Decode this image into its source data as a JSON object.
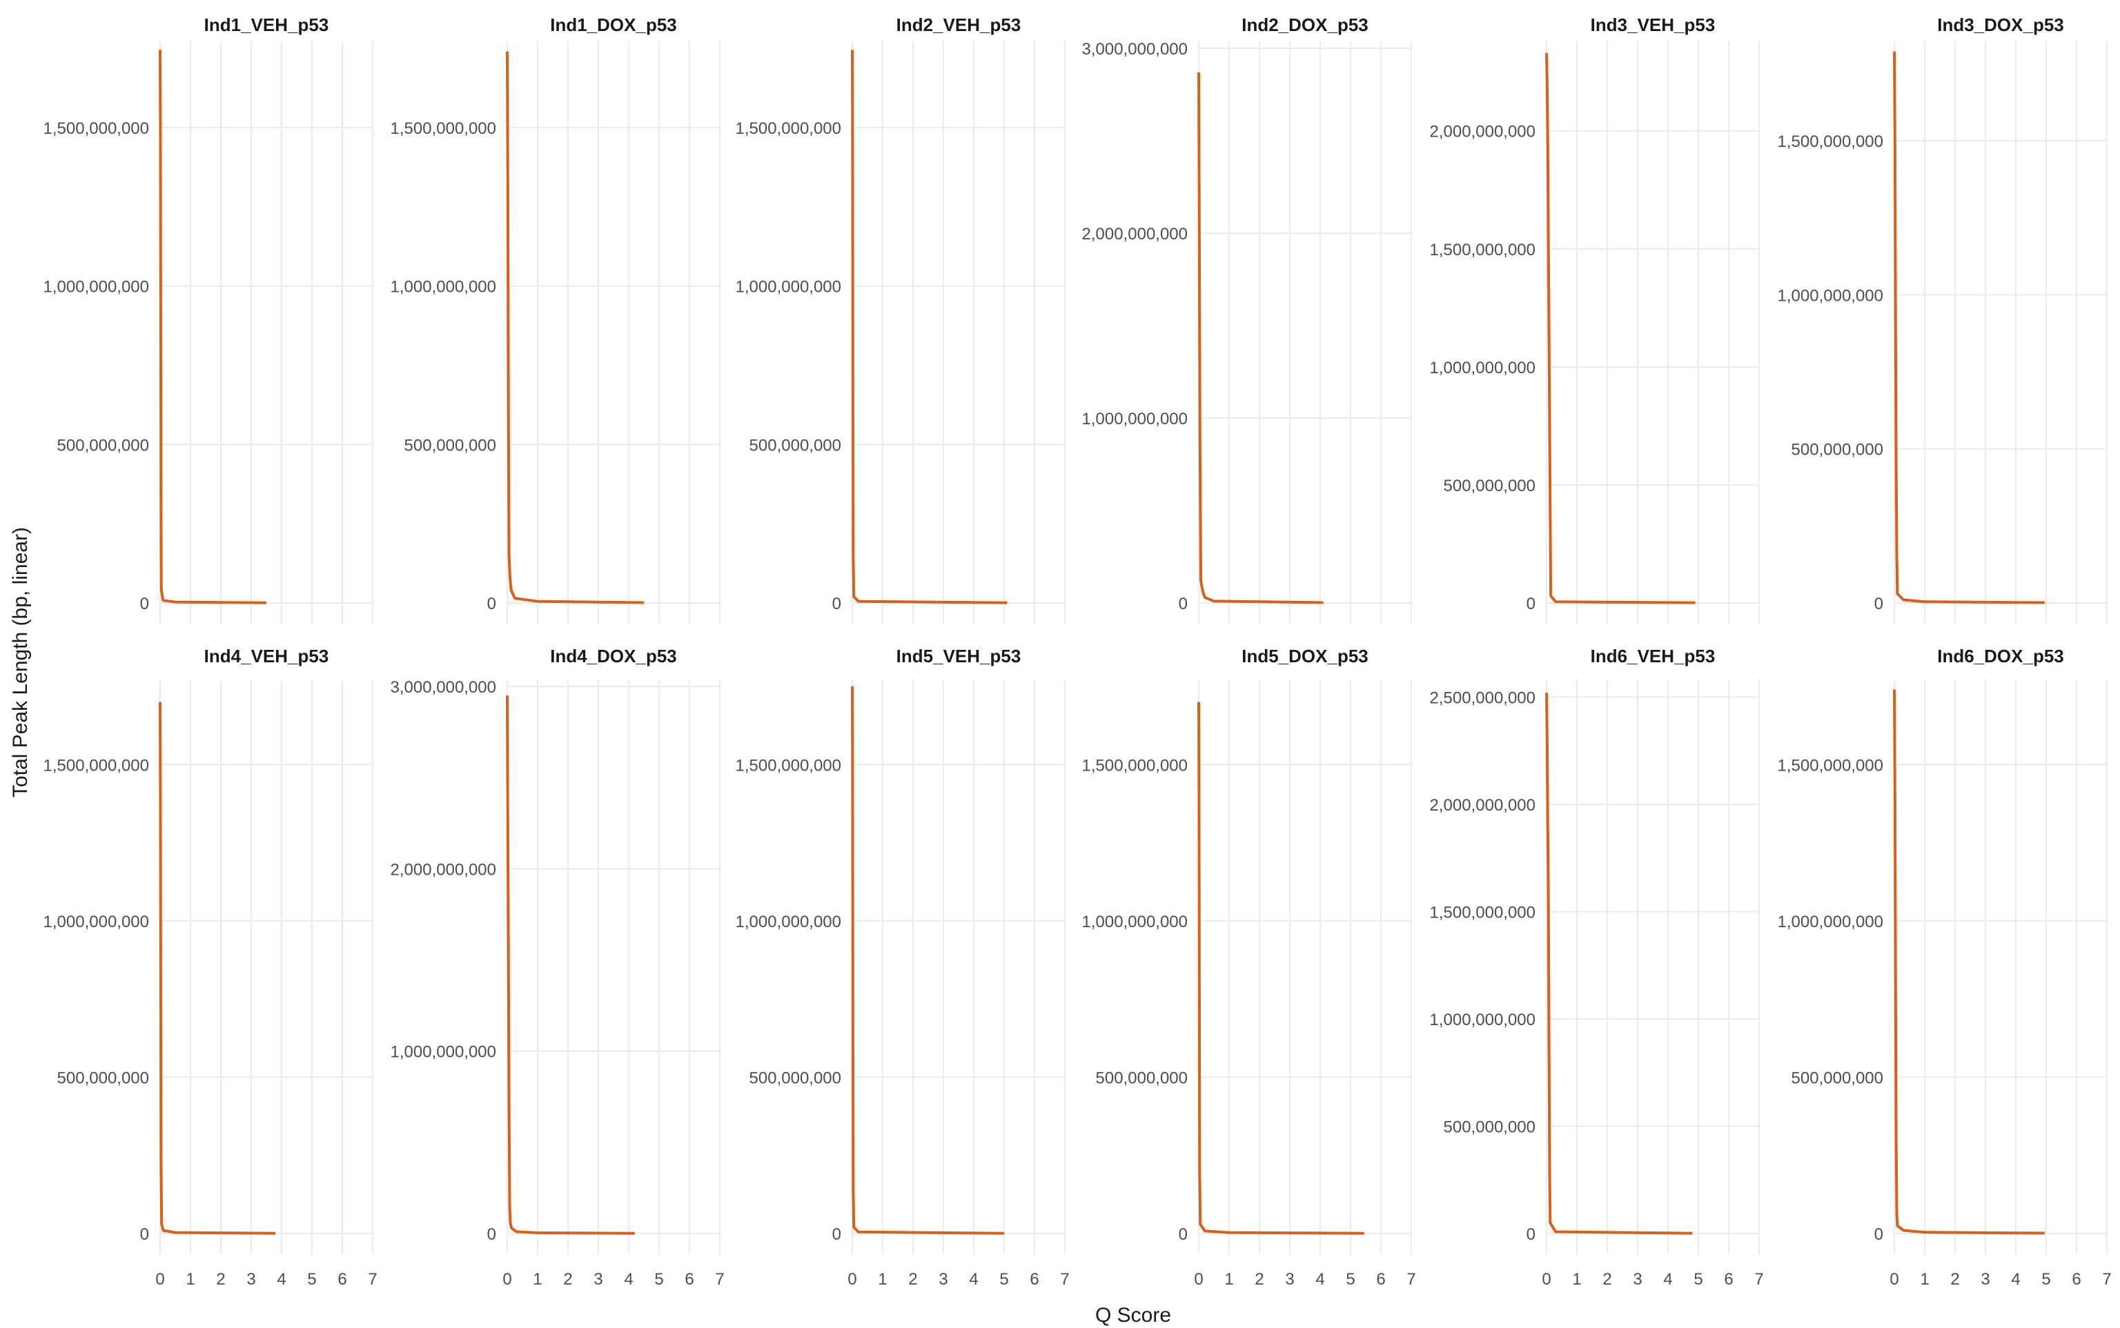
{
  "chart_data": {
    "type": "line",
    "facet_layout": {
      "rows": 2,
      "cols": 6
    },
    "xlabel": "Q Score",
    "ylabel": "Total Peak Length (bp, linear)",
    "line_color": "#D9601A",
    "grid_color": "#EBEBEB",
    "x_ticks": [
      0,
      1,
      2,
      3,
      4,
      5,
      6,
      7
    ],
    "xlim": [
      0,
      7
    ],
    "grid": true,
    "panels": [
      {
        "title": "Ind1_VEH_p53",
        "ylim": [
          0,
          1750000000
        ],
        "yticks": [
          0,
          500000000,
          1000000000,
          1500000000
        ],
        "ytick_labels": [
          "0",
          "500,000,000",
          "1,000,000,000",
          "1,500,000,000"
        ],
        "points": [
          [
            0,
            1745000000
          ],
          [
            0.01,
            1500000000
          ],
          [
            0.02,
            900000000
          ],
          [
            0.03,
            300000000
          ],
          [
            0.04,
            40000000
          ],
          [
            0.1,
            8000000
          ],
          [
            0.5,
            3000000
          ],
          [
            3.5,
            500000
          ]
        ]
      },
      {
        "title": "Ind1_DOX_p53",
        "ylim": [
          0,
          1750000000
        ],
        "yticks": [
          0,
          500000000,
          1000000000,
          1500000000
        ],
        "ytick_labels": [
          "0",
          "500,000,000",
          "1,000,000,000",
          "1,500,000,000"
        ],
        "points": [
          [
            0,
            1740000000
          ],
          [
            0.02,
            1300000000
          ],
          [
            0.04,
            600000000
          ],
          [
            0.06,
            150000000
          ],
          [
            0.09,
            80000000
          ],
          [
            0.13,
            40000000
          ],
          [
            0.25,
            15000000
          ],
          [
            1,
            5000000
          ],
          [
            4.5,
            1000000
          ]
        ]
      },
      {
        "title": "Ind2_VEH_p53",
        "ylim": [
          0,
          1750000000
        ],
        "yticks": [
          0,
          500000000,
          1000000000,
          1500000000
        ],
        "ytick_labels": [
          "0",
          "500,000,000",
          "1,000,000,000",
          "1,500,000,000"
        ],
        "points": [
          [
            0,
            1745000000
          ],
          [
            0.01,
            1400000000
          ],
          [
            0.02,
            700000000
          ],
          [
            0.03,
            150000000
          ],
          [
            0.05,
            20000000
          ],
          [
            0.2,
            5000000
          ],
          [
            5.1,
            500000
          ]
        ]
      },
      {
        "title": "Ind2_DOX_p53",
        "ylim": [
          0,
          3000000000
        ],
        "yticks": [
          0,
          1000000000,
          2000000000,
          3000000000
        ],
        "ytick_labels": [
          "0",
          "1,000,000,000",
          "2,000,000,000",
          "3,000,000,000"
        ],
        "points": [
          [
            0,
            2870000000
          ],
          [
            0.02,
            2000000000
          ],
          [
            0.04,
            900000000
          ],
          [
            0.07,
            120000000
          ],
          [
            0.1,
            90000000
          ],
          [
            0.14,
            60000000
          ],
          [
            0.2,
            30000000
          ],
          [
            0.5,
            10000000
          ],
          [
            4.1,
            2000000
          ]
        ]
      },
      {
        "title": "Ind3_VEH_p53",
        "ylim": [
          0,
          2350000000
        ],
        "yticks": [
          0,
          500000000,
          1000000000,
          1500000000,
          2000000000
        ],
        "ytick_labels": [
          "0",
          "500,000,000",
          "1,000,000,000",
          "1,500,000,000",
          "2,000,000,000"
        ],
        "points": [
          [
            0,
            2330000000
          ],
          [
            0.02,
            2200000000
          ],
          [
            0.04,
            1950000000
          ],
          [
            0.06,
            1550000000
          ],
          [
            0.08,
            1170000000
          ],
          [
            0.1,
            780000000
          ],
          [
            0.12,
            390000000
          ],
          [
            0.14,
            30000000
          ],
          [
            0.3,
            5000000
          ],
          [
            4.9,
            1000000
          ]
        ]
      },
      {
        "title": "Ind3_DOX_p53",
        "ylim": [
          0,
          1800000000
        ],
        "yticks": [
          0,
          500000000,
          1000000000,
          1500000000
        ],
        "ytick_labels": [
          "0",
          "500,000,000",
          "1,000,000,000",
          "1,500,000,000"
        ],
        "points": [
          [
            0,
            1790000000
          ],
          [
            0.02,
            1500000000
          ],
          [
            0.04,
            900000000
          ],
          [
            0.06,
            450000000
          ],
          [
            0.08,
            150000000
          ],
          [
            0.1,
            30000000
          ],
          [
            0.3,
            10000000
          ],
          [
            1,
            4000000
          ],
          [
            4.95,
            1000000
          ]
        ]
      },
      {
        "title": "Ind4_VEH_p53",
        "ylim": [
          0,
          1750000000
        ],
        "yticks": [
          0,
          500000000,
          1000000000,
          1500000000
        ],
        "ytick_labels": [
          "0",
          "500,000,000",
          "1,000,000,000",
          "1,500,000,000"
        ],
        "points": [
          [
            0,
            1700000000
          ],
          [
            0.01,
            1400000000
          ],
          [
            0.02,
            800000000
          ],
          [
            0.03,
            250000000
          ],
          [
            0.05,
            30000000
          ],
          [
            0.1,
            10000000
          ],
          [
            0.5,
            3000000
          ],
          [
            3.8,
            500000
          ]
        ]
      },
      {
        "title": "Ind4_DOX_p53",
        "ylim": [
          0,
          3000000000
        ],
        "yticks": [
          0,
          1000000000,
          2000000000,
          3000000000
        ],
        "ytick_labels": [
          "0",
          "1,000,000,000",
          "2,000,000,000",
          "3,000,000,000"
        ],
        "points": [
          [
            0,
            2950000000
          ],
          [
            0.02,
            2200000000
          ],
          [
            0.04,
            1500000000
          ],
          [
            0.06,
            700000000
          ],
          [
            0.08,
            150000000
          ],
          [
            0.1,
            60000000
          ],
          [
            0.14,
            30000000
          ],
          [
            0.3,
            10000000
          ],
          [
            1,
            4000000
          ],
          [
            4.2,
            1000000
          ]
        ]
      },
      {
        "title": "Ind5_VEH_p53",
        "ylim": [
          0,
          1750000000
        ],
        "yticks": [
          0,
          500000000,
          1000000000,
          1500000000
        ],
        "ytick_labels": [
          "0",
          "500,000,000",
          "1,000,000,000",
          "1,500,000,000"
        ],
        "points": [
          [
            0,
            1750000000
          ],
          [
            0.01,
            1400000000
          ],
          [
            0.02,
            700000000
          ],
          [
            0.03,
            150000000
          ],
          [
            0.05,
            20000000
          ],
          [
            0.2,
            5000000
          ],
          [
            5.0,
            500000
          ]
        ]
      },
      {
        "title": "Ind5_DOX_p53",
        "ylim": [
          0,
          1750000000
        ],
        "yticks": [
          0,
          500000000,
          1000000000,
          1500000000
        ],
        "ytick_labels": [
          "0",
          "500,000,000",
          "1,000,000,000",
          "1,500,000,000"
        ],
        "points": [
          [
            0,
            1700000000
          ],
          [
            0.01,
            1400000000
          ],
          [
            0.02,
            800000000
          ],
          [
            0.03,
            200000000
          ],
          [
            0.05,
            30000000
          ],
          [
            0.2,
            8000000
          ],
          [
            1,
            3000000
          ],
          [
            5.45,
            500000
          ]
        ]
      },
      {
        "title": "Ind6_VEH_p53",
        "ylim": [
          0,
          2550000000
        ],
        "yticks": [
          0,
          500000000,
          1000000000,
          1500000000,
          2000000000,
          2500000000
        ],
        "ytick_labels": [
          "0",
          "500,000,000",
          "1,000,000,000",
          "1,500,000,000",
          "2,000,000,000",
          "2,500,000,000"
        ],
        "points": [
          [
            0,
            2520000000
          ],
          [
            0.02,
            2300000000
          ],
          [
            0.04,
            1900000000
          ],
          [
            0.06,
            1600000000
          ],
          [
            0.07,
            1250000000
          ],
          [
            0.08,
            900000000
          ],
          [
            0.09,
            640000000
          ],
          [
            0.1,
            300000000
          ],
          [
            0.12,
            50000000
          ],
          [
            0.3,
            8000000
          ],
          [
            4.8,
            1000000
          ]
        ]
      },
      {
        "title": "Ind6_DOX_p53",
        "ylim": [
          0,
          1750000000
        ],
        "yticks": [
          0,
          500000000,
          1000000000,
          1500000000
        ],
        "ytick_labels": [
          "0",
          "500,000,000",
          "1,000,000,000",
          "1,500,000,000"
        ],
        "points": [
          [
            0,
            1740000000
          ],
          [
            0.02,
            1400000000
          ],
          [
            0.04,
            800000000
          ],
          [
            0.06,
            300000000
          ],
          [
            0.08,
            60000000
          ],
          [
            0.1,
            25000000
          ],
          [
            0.3,
            10000000
          ],
          [
            1,
            4000000
          ],
          [
            4.95,
            1000000
          ]
        ]
      }
    ]
  }
}
